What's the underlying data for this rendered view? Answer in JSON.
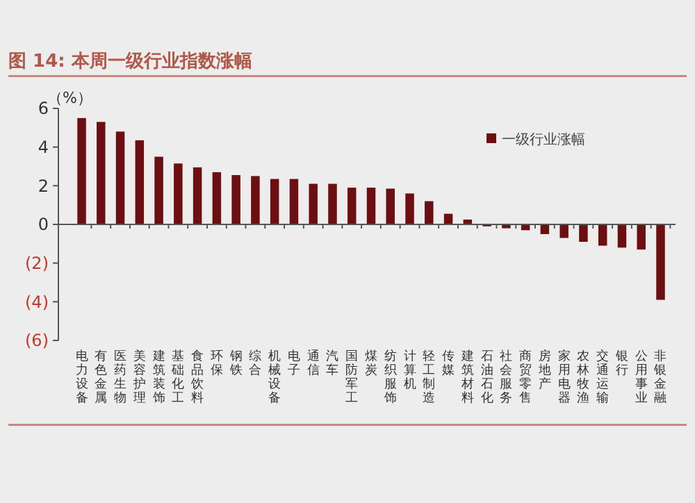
{
  "chart_data": {
    "type": "bar",
    "title": "图 14: 本周一级行业指数涨幅",
    "ylabel": "（%）",
    "categories": [
      "电力设备",
      "有色金属",
      "医药生物",
      "美容护理",
      "建筑装饰",
      "基础化工",
      "食品饮料",
      "环保",
      "钢铁",
      "综合",
      "机械设备",
      "电子",
      "通信",
      "汽车",
      "国防军工",
      "煤炭",
      "纺织服饰",
      "计算机",
      "轻工制造",
      "传媒",
      "建筑材料",
      "石油石化",
      "社会服务",
      "商贸零售",
      "房地产",
      "家用电器",
      "农林牧渔",
      "交通运输",
      "银行",
      "公用事业",
      "非银金融"
    ],
    "series": [
      {
        "name": "一级行业涨幅",
        "color": "#6b0f12",
        "values": [
          5.5,
          5.3,
          4.8,
          4.35,
          3.5,
          3.15,
          2.95,
          2.7,
          2.55,
          2.5,
          2.35,
          2.35,
          2.1,
          2.1,
          1.9,
          1.9,
          1.85,
          1.6,
          1.2,
          0.55,
          0.25,
          -0.1,
          -0.2,
          -0.3,
          -0.5,
          -0.7,
          -0.9,
          -1.1,
          -1.2,
          -1.3,
          -3.9
        ]
      }
    ],
    "ylim": [
      -6,
      6
    ],
    "yticks": [
      {
        "value": -6,
        "label": "(6)"
      },
      {
        "value": -4,
        "label": "(4)"
      },
      {
        "value": -2,
        "label": "(2)"
      },
      0,
      2,
      4,
      6
    ],
    "legend": "top right",
    "grid": false
  }
}
